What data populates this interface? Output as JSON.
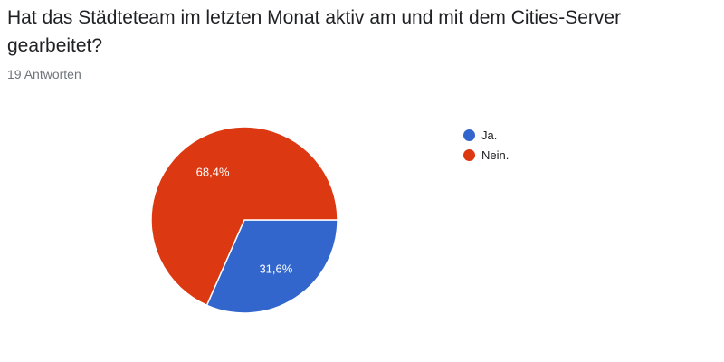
{
  "question": {
    "title": "Hat das Städteteam im letzten Monat aktiv am und mit dem Cities-Server gearbeitet?",
    "response_count": "19 Antworten"
  },
  "chart_data": {
    "type": "pie",
    "categories": [
      "Ja.",
      "Nein."
    ],
    "values": [
      31.6,
      68.4
    ],
    "labels": [
      "31,6%",
      "68,4%"
    ],
    "colors": [
      "#3366cc",
      "#dc3912"
    ],
    "legend_position": "right"
  }
}
